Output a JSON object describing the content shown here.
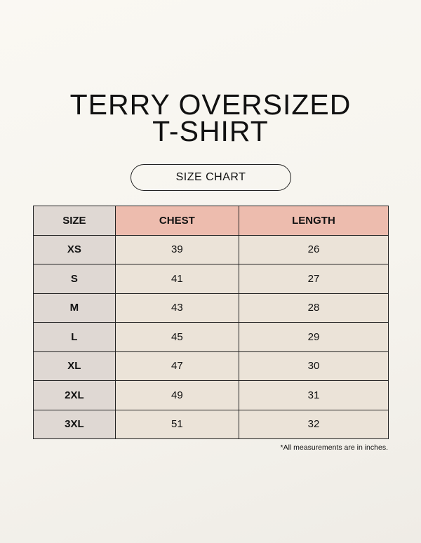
{
  "title_line1": "TERRY OVERSIZED",
  "title_line2": "T-SHIRT",
  "badge": "SIZE CHART",
  "table": {
    "headers": [
      "SIZE",
      "CHEST",
      "LENGTH"
    ],
    "rows": [
      [
        "XS",
        "39",
        "26"
      ],
      [
        "S",
        "41",
        "27"
      ],
      [
        "M",
        "43",
        "28"
      ],
      [
        "L",
        "45",
        "29"
      ],
      [
        "XL",
        "47",
        "30"
      ],
      [
        "2XL",
        "49",
        "31"
      ],
      [
        "3XL",
        "51",
        "32"
      ]
    ]
  },
  "note": "*All measurements are in inches.",
  "colors": {
    "size_column": "#dfd8d3",
    "header_accent": "#edbcae",
    "cell": "#ebe3d8",
    "background": "#f7f5ef"
  }
}
